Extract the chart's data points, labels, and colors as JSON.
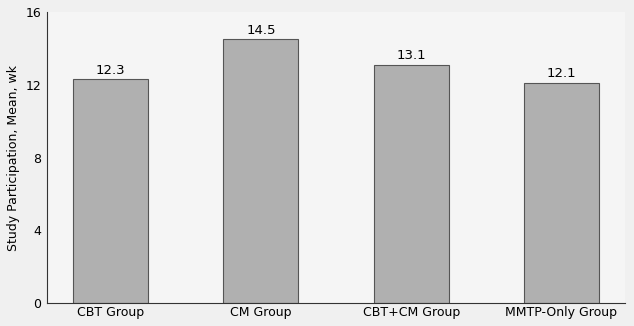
{
  "categories": [
    "CBT Group",
    "CM Group",
    "CBT+CM Group",
    "MMTP-Only Group"
  ],
  "values": [
    12.3,
    14.5,
    13.1,
    12.1
  ],
  "bar_color": "#b0b0b0",
  "bar_edgecolor": "#555555",
  "ylabel": "Study Participation, Mean, wk",
  "ylim": [
    0,
    16
  ],
  "yticks": [
    0,
    4,
    8,
    12,
    16
  ],
  "bar_width": 0.5,
  "label_fontsize": 9,
  "tick_fontsize": 9,
  "ylabel_fontsize": 9,
  "annotation_fontsize": 9.5,
  "background_color": "#f5f5f5",
  "figure_bg": "#f0f0f0"
}
